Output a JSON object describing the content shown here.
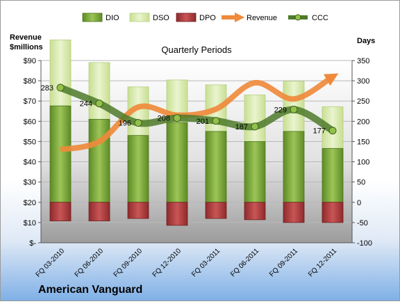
{
  "colors": {
    "dio_dark": "#5e8a25",
    "dio_light": "#9cc558",
    "dso_light": "#eaf4cf",
    "dso_dark": "#c8df92",
    "dpo_dark": "#8e2a2c",
    "dpo_light": "#c95555",
    "revenue": "#ef8a3c",
    "ccc_line": "#4e7a2a",
    "ccc_marker": "#93c04a"
  },
  "chart_data": {
    "type": "bar",
    "title": "Quarterly Periods",
    "company": "American Vanguard",
    "ylabel_left": "Revenue\n$millions",
    "ylabel_right": "Days",
    "ylim_left": [
      0,
      90
    ],
    "ylim_right": [
      -100,
      350
    ],
    "yticks_left": [
      "$-",
      "$10",
      "$20",
      "$30",
      "$40",
      "$50",
      "$60",
      "$70",
      "$80",
      "$90"
    ],
    "yticks_right": [
      "-100",
      "-50",
      "0",
      "50",
      "100",
      "150",
      "200",
      "250",
      "300",
      "350"
    ],
    "categories": [
      "FQ 03-2010",
      "FQ 06-2010",
      "FQ 09-2010",
      "FQ 12-2010",
      "FQ 03-2011",
      "FQ 06-2011",
      "FQ 09-2011",
      "FQ 12-2011"
    ],
    "legend": [
      "DIO",
      "DSO",
      "DPO",
      "Revenue",
      "CCC"
    ],
    "legend_position": "top",
    "series": [
      {
        "name": "DIO",
        "axis": "right",
        "values": [
          238,
          205,
          165,
          197,
          175,
          150,
          175,
          133
        ]
      },
      {
        "name": "DSO",
        "axis": "right",
        "values": [
          163,
          140,
          120,
          105,
          115,
          115,
          124,
          103
        ]
      },
      {
        "name": "DPO",
        "axis": "right",
        "values": [
          -46,
          -46,
          -40,
          -57,
          -40,
          -43,
          -50,
          -50
        ]
      },
      {
        "name": "Revenue",
        "axis": "left",
        "values": [
          46,
          50,
          67,
          63,
          66,
          79,
          71,
          82
        ]
      },
      {
        "name": "CCC",
        "axis": "right",
        "values": [
          283,
          244,
          196,
          208,
          201,
          187,
          229,
          177
        ]
      }
    ],
    "data_labels": {
      "CCC": [
        "283",
        "244",
        "196",
        "208",
        "201",
        "187",
        "229",
        "177"
      ]
    }
  }
}
